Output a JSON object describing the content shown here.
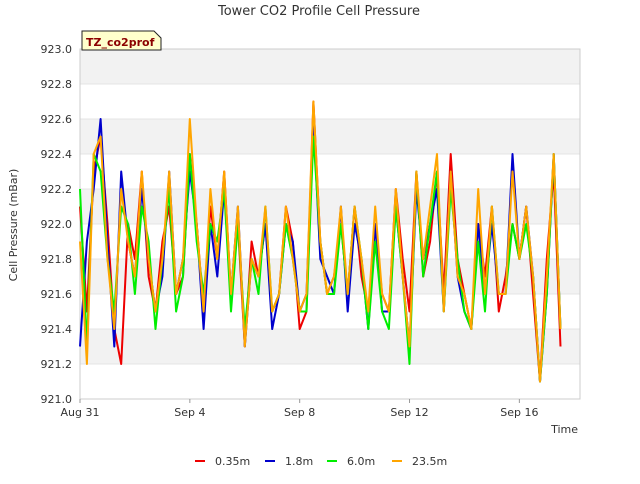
{
  "chart_data": {
    "type": "line",
    "title": "Tower CO2 Profile Cell Pressure",
    "xlabel": "Time",
    "ylabel": "Cell Pressure (mBar)",
    "badge": "TZ_co2prof",
    "ylim": [
      921.0,
      923.0
    ],
    "xlim": [
      "2023-08-31",
      "2023-09-18 05:00"
    ],
    "grid": true,
    "legend_position": "bottom",
    "y_ticks": [
      "921.0",
      "921.2",
      "921.4",
      "921.6",
      "921.8",
      "922.0",
      "922.2",
      "922.4",
      "922.6",
      "922.8",
      "923.0"
    ],
    "x_ticks": [
      {
        "label": "Aug 31",
        "x": "2023-08-31"
      },
      {
        "label": "Sep 4",
        "x": "2023-09-04"
      },
      {
        "label": "Sep 8",
        "x": "2023-09-08"
      },
      {
        "label": "Sep 12",
        "x": "2023-09-12"
      },
      {
        "label": "Sep 16",
        "x": "2023-09-16"
      }
    ],
    "x_hours": [
      0,
      6,
      12,
      18,
      24,
      30,
      36,
      42,
      48,
      54,
      60,
      66,
      72,
      78,
      84,
      90,
      96,
      102,
      108,
      114,
      120,
      126,
      132,
      138,
      144,
      150,
      156,
      162,
      168,
      174,
      180,
      186,
      192,
      198,
      204,
      210,
      216,
      222,
      228,
      234,
      240,
      246,
      252,
      258,
      264,
      270,
      276,
      282,
      288,
      294,
      300,
      306,
      312,
      318,
      324,
      330,
      336,
      342,
      348,
      354,
      360,
      366,
      372,
      378,
      384,
      390,
      396,
      402,
      408,
      414,
      420
    ],
    "series": [
      {
        "name": "0.35m",
        "color": "#ee0000",
        "values": [
          922.1,
          921.5,
          922.3,
          922.5,
          922.0,
          921.4,
          921.2,
          922.0,
          921.8,
          922.3,
          921.7,
          921.5,
          921.9,
          922.1,
          921.6,
          921.7,
          922.4,
          922.0,
          921.5,
          922.1,
          921.8,
          922.3,
          921.6,
          922.0,
          921.3,
          921.9,
          921.7,
          922.0,
          921.5,
          921.6,
          922.1,
          921.9,
          921.4,
          921.5,
          922.7,
          921.9,
          921.6,
          921.7,
          922.0,
          921.6,
          922.1,
          921.7,
          921.5,
          922.0,
          921.6,
          921.5,
          922.2,
          921.8,
          921.5,
          922.3,
          921.7,
          921.9,
          922.3,
          921.6,
          922.4,
          921.8,
          921.6,
          921.4,
          922.0,
          921.7,
          922.1,
          921.5,
          921.7,
          922.0,
          921.8,
          922.1,
          921.6,
          921.1,
          921.8,
          922.3,
          921.3
        ]
      },
      {
        "name": "1.8m",
        "color": "#0000cc",
        "values": [
          921.3,
          921.9,
          922.2,
          922.6,
          921.9,
          921.3,
          922.3,
          921.9,
          921.7,
          922.2,
          921.8,
          921.5,
          921.7,
          922.3,
          921.6,
          921.8,
          922.3,
          922.0,
          921.4,
          922.0,
          921.7,
          922.2,
          921.6,
          922.1,
          921.3,
          921.8,
          921.7,
          922.0,
          921.4,
          921.6,
          922.0,
          921.9,
          921.5,
          921.6,
          922.6,
          921.8,
          921.7,
          921.6,
          922.1,
          921.5,
          922.0,
          921.8,
          921.4,
          922.0,
          921.5,
          921.5,
          922.1,
          921.7,
          921.3,
          922.2,
          921.8,
          922.0,
          922.2,
          921.5,
          922.3,
          921.7,
          921.5,
          921.4,
          922.0,
          921.6,
          922.0,
          921.6,
          921.6,
          922.4,
          921.8,
          922.1,
          921.7,
          921.1,
          921.6,
          922.4,
          921.4
        ]
      },
      {
        "name": "6.0m",
        "color": "#00ee00",
        "values": [
          922.2,
          921.3,
          922.4,
          922.3,
          921.8,
          921.5,
          922.1,
          922.0,
          921.6,
          922.1,
          921.9,
          921.4,
          921.8,
          922.2,
          921.5,
          921.7,
          922.4,
          921.9,
          921.6,
          922.0,
          921.9,
          922.2,
          921.5,
          922.0,
          921.4,
          921.8,
          921.6,
          922.1,
          921.5,
          921.6,
          922.0,
          921.8,
          921.5,
          921.5,
          922.5,
          921.9,
          921.6,
          921.6,
          922.0,
          921.6,
          922.1,
          921.8,
          921.4,
          921.9,
          921.5,
          921.4,
          922.1,
          921.7,
          921.2,
          922.3,
          921.7,
          922.0,
          922.3,
          921.5,
          922.2,
          921.8,
          921.5,
          921.4,
          921.9,
          921.5,
          922.1,
          921.6,
          921.6,
          922.0,
          921.8,
          922.0,
          921.7,
          921.1,
          921.6,
          922.4,
          921.4
        ]
      },
      {
        "name": "23.5m",
        "color": "#ffa500",
        "values": [
          921.9,
          921.2,
          922.4,
          922.5,
          921.8,
          921.4,
          922.2,
          921.9,
          921.7,
          922.3,
          921.8,
          921.5,
          921.8,
          922.3,
          921.6,
          921.8,
          922.6,
          922.0,
          921.5,
          922.2,
          921.8,
          922.3,
          921.6,
          922.1,
          921.3,
          921.8,
          921.7,
          922.1,
          921.5,
          921.6,
          922.1,
          921.8,
          921.5,
          921.6,
          922.7,
          921.9,
          921.6,
          921.7,
          922.1,
          921.6,
          922.1,
          921.8,
          921.5,
          922.1,
          921.6,
          921.5,
          922.2,
          921.7,
          921.3,
          922.3,
          921.8,
          922.1,
          922.4,
          921.5,
          922.3,
          921.7,
          921.6,
          921.4,
          922.2,
          921.6,
          922.1,
          921.6,
          921.6,
          922.3,
          921.8,
          922.1,
          921.7,
          921.1,
          921.7,
          922.4,
          921.4
        ]
      }
    ]
  }
}
